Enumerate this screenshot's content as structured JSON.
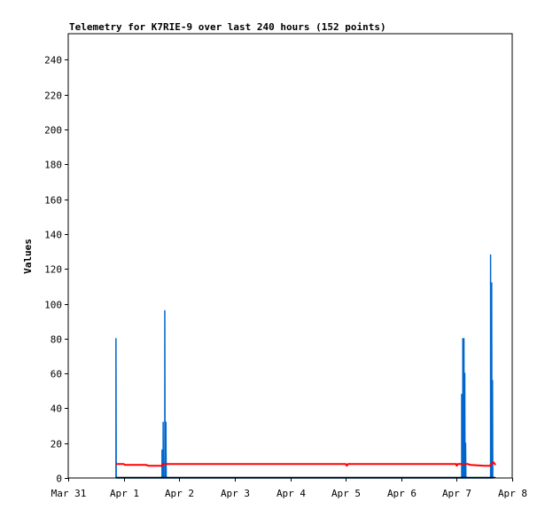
{
  "chart_data": {
    "type": "line",
    "title": "Telemetry for K7RIE-9 over last 240 hours (152 points)",
    "xlabel": "",
    "ylabel": "Values",
    "xlim": [
      0,
      8
    ],
    "ylim": [
      0,
      255
    ],
    "grid": false,
    "legend": "none",
    "x_tick_values": [
      0,
      1,
      2,
      3,
      4,
      5,
      6,
      7,
      8
    ],
    "x_tick_labels": [
      "Mar 31",
      "Apr 1",
      "Apr 2",
      "Apr 3",
      "Apr 4",
      "Apr 5",
      "Apr 6",
      "Apr 7",
      "Apr 8"
    ],
    "y_ticks": [
      0,
      20,
      40,
      60,
      80,
      100,
      120,
      140,
      160,
      180,
      200,
      220,
      240
    ],
    "series": [
      {
        "color": "#0066cc",
        "style": "spikes",
        "points": [
          [
            0.86,
            0
          ],
          [
            0.86,
            80
          ],
          [
            0.865,
            0
          ],
          [
            1.69,
            0
          ],
          [
            1.69,
            16
          ],
          [
            1.695,
            0
          ],
          [
            1.71,
            0
          ],
          [
            1.71,
            32
          ],
          [
            1.715,
            0
          ],
          [
            1.74,
            0
          ],
          [
            1.74,
            96
          ],
          [
            1.745,
            0
          ],
          [
            1.76,
            0
          ],
          [
            1.76,
            32
          ],
          [
            1.765,
            0
          ],
          [
            7.09,
            0
          ],
          [
            7.09,
            48
          ],
          [
            7.095,
            0
          ],
          [
            7.11,
            0
          ],
          [
            7.11,
            80
          ],
          [
            7.115,
            0
          ],
          [
            7.13,
            0
          ],
          [
            7.13,
            80
          ],
          [
            7.135,
            0
          ],
          [
            7.145,
            0
          ],
          [
            7.145,
            60
          ],
          [
            7.15,
            0
          ],
          [
            7.16,
            0
          ],
          [
            7.16,
            20
          ],
          [
            7.165,
            0
          ],
          [
            7.61,
            0
          ],
          [
            7.61,
            128
          ],
          [
            7.615,
            0
          ],
          [
            7.63,
            0
          ],
          [
            7.63,
            112
          ],
          [
            7.635,
            0
          ],
          [
            7.645,
            0
          ],
          [
            7.645,
            56
          ],
          [
            7.65,
            0
          ]
        ]
      },
      {
        "color": "#ff0000",
        "style": "line",
        "points": [
          [
            0.86,
            8
          ],
          [
            1.0,
            8
          ],
          [
            1.02,
            7.5
          ],
          [
            1.4,
            7.5
          ],
          [
            1.45,
            7
          ],
          [
            1.69,
            7
          ],
          [
            1.7,
            8
          ],
          [
            2.5,
            8
          ],
          [
            3.5,
            8
          ],
          [
            4.5,
            8
          ],
          [
            5.0,
            8
          ],
          [
            5.02,
            7
          ],
          [
            5.04,
            8
          ],
          [
            6.0,
            8
          ],
          [
            6.99,
            8
          ],
          [
            7.0,
            7
          ],
          [
            7.02,
            8
          ],
          [
            7.2,
            8
          ],
          [
            7.25,
            7.5
          ],
          [
            7.5,
            7
          ],
          [
            7.6,
            7
          ],
          [
            7.62,
            8
          ],
          [
            7.66,
            9
          ],
          [
            7.7,
            7.5
          ]
        ]
      }
    ]
  }
}
